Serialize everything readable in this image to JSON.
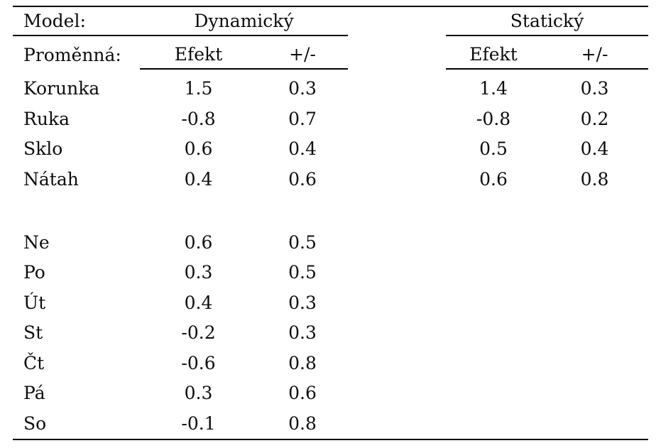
{
  "table": {
    "model_label": "Model:",
    "variable_label": "Proměnná:",
    "groups": [
      {
        "name": "Dynamický",
        "effect": "Efekt",
        "pm": "+/-"
      },
      {
        "name": "Statický",
        "effect": "Efekt",
        "pm": "+/-"
      }
    ],
    "rows": [
      {
        "label": "Korunka",
        "d_ef": "1.5",
        "d_pm": "0.3",
        "s_ef": "1.4",
        "s_pm": "0.3"
      },
      {
        "label": "Ruka",
        "d_ef": "-0.8",
        "d_pm": "0.7",
        "s_ef": "-0.8",
        "s_pm": "0.2"
      },
      {
        "label": "Sklo",
        "d_ef": "0.6",
        "d_pm": "0.4",
        "s_ef": "0.5",
        "s_pm": "0.4"
      },
      {
        "label": "Nátah",
        "d_ef": "0.4",
        "d_pm": "0.6",
        "s_ef": "0.6",
        "s_pm": "0.8"
      },
      {
        "label": "Ne",
        "d_ef": "0.6",
        "d_pm": "0.5"
      },
      {
        "label": "Po",
        "d_ef": "0.3",
        "d_pm": "0.5"
      },
      {
        "label": "Út",
        "d_ef": "0.4",
        "d_pm": "0.3"
      },
      {
        "label": "St",
        "d_ef": "-0.2",
        "d_pm": "0.3"
      },
      {
        "label": "Čt",
        "d_ef": "-0.6",
        "d_pm": "0.8"
      },
      {
        "label": "Pá",
        "d_ef": "0.3",
        "d_pm": "0.6"
      },
      {
        "label": "So",
        "d_ef": "-0.1",
        "d_pm": "0.8"
      }
    ]
  }
}
